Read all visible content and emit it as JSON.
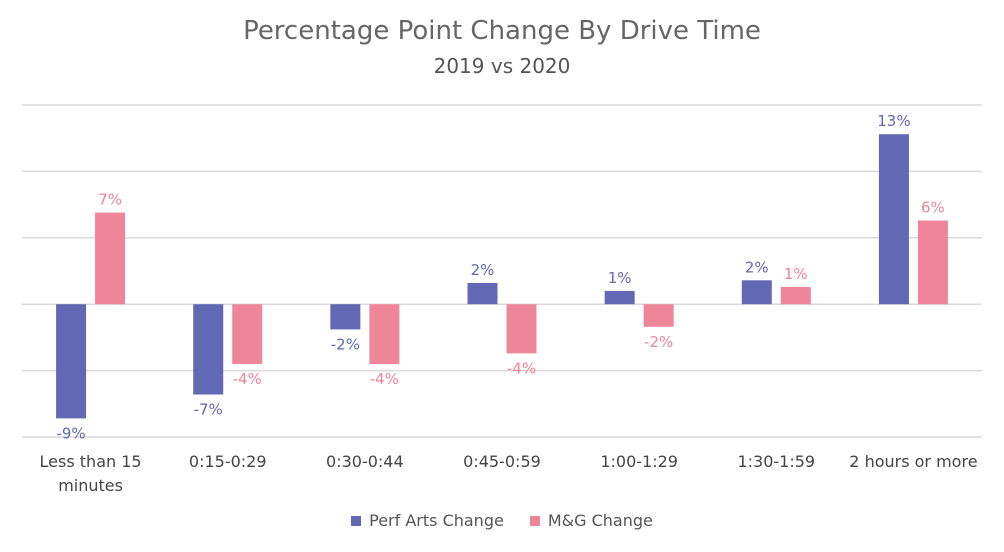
{
  "chart_data": {
    "type": "bar",
    "title": "Percentage Point Change By Drive Time",
    "subtitle": "2019 vs 2020",
    "xlabel": "",
    "ylabel": "",
    "categories": [
      "Less than 15 minutes",
      "0:15-0:29",
      "0:30-0:44",
      "0:45-0:59",
      "1:00-1:29",
      "1:30-1:59",
      "2 hours or more"
    ],
    "category_lines": [
      [
        "Less than 15",
        "minutes"
      ],
      [
        "0:15-0:29"
      ],
      [
        "0:30-0:44"
      ],
      [
        "0:45-0:59"
      ],
      [
        "1:00-1:29"
      ],
      [
        "1:30-1:59"
      ],
      [
        "2 hours or more"
      ]
    ],
    "series": [
      {
        "name": "Perf Arts Change",
        "color": "#6268b4",
        "values": [
          -8.6,
          -6.8,
          -1.9,
          1.6,
          1.0,
          1.8,
          12.8
        ],
        "labels": [
          "-9%",
          "-7%",
          "-2%",
          "2%",
          "1%",
          "2%",
          "13%"
        ]
      },
      {
        "name": "M&G Change",
        "color": "#ee8599",
        "values": [
          6.9,
          -4.5,
          -4.5,
          -3.7,
          -1.7,
          1.3,
          6.3
        ],
        "labels": [
          "7%",
          "-4%",
          "-4%",
          "-4%",
          "-2%",
          "1%",
          "6%"
        ]
      }
    ],
    "ylim": [
      -10,
      15
    ],
    "gridlines": [
      -10,
      -5,
      0,
      5,
      10,
      15
    ],
    "grid": true,
    "legend": "bottom"
  }
}
